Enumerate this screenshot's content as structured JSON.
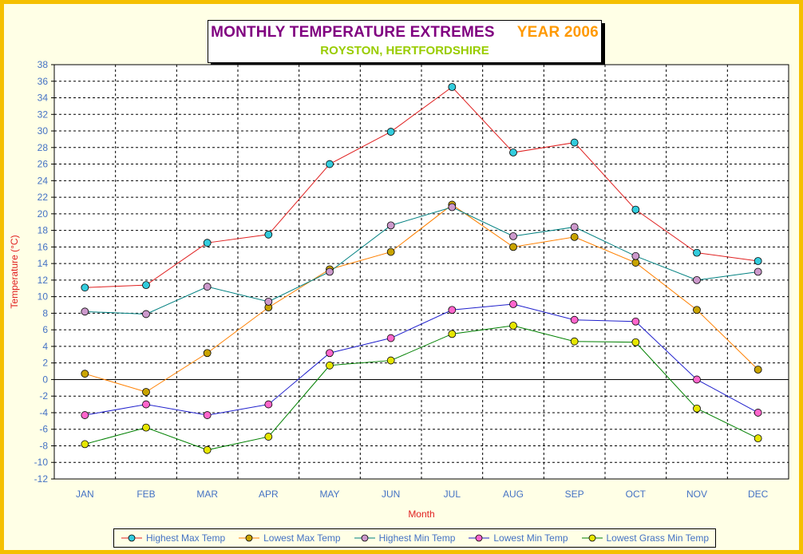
{
  "title": {
    "main": "MONTHLY TEMPERATURE EXTREMES",
    "year": "YEAR  2006",
    "subtitle": "ROYSTON, HERTFORDSHIRE"
  },
  "chart_data": {
    "type": "line",
    "ylabel": "Temperature (°C)",
    "xlabel": "Month",
    "categories": [
      "JAN",
      "FEB",
      "MAR",
      "APR",
      "MAY",
      "JUN",
      "JUL",
      "AUG",
      "SEP",
      "OCT",
      "NOV",
      "DEC"
    ],
    "ylim": [
      -12,
      38
    ],
    "ytick_step": 2,
    "grid": true,
    "legend_position": "bottom",
    "series": [
      {
        "name": "Highest Max Temp",
        "line_color": "#e02020",
        "marker_color": "#33ccdd",
        "values": [
          11.1,
          11.4,
          16.5,
          17.5,
          26.0,
          29.9,
          35.3,
          27.4,
          28.6,
          20.5,
          15.3,
          14.3
        ]
      },
      {
        "name": "Lowest Max Temp",
        "line_color": "#ff8000",
        "marker_color": "#c9a400",
        "values": [
          0.7,
          -1.5,
          3.2,
          8.7,
          13.3,
          15.4,
          21.1,
          16.0,
          17.2,
          14.1,
          8.4,
          1.2
        ]
      },
      {
        "name": "Highest Min Temp",
        "line_color": "#008080",
        "marker_color": "#cc99cc",
        "values": [
          8.2,
          7.9,
          11.2,
          9.4,
          13.0,
          18.6,
          20.8,
          17.3,
          18.4,
          14.9,
          12.0,
          13.0
        ]
      },
      {
        "name": "Lowest Min Temp",
        "line_color": "#2020cc",
        "marker_color": "#ff66cc",
        "values": [
          -4.3,
          -3.0,
          -4.3,
          -3.0,
          3.2,
          5.0,
          8.4,
          9.1,
          7.2,
          7.0,
          0.0,
          -4.0
        ]
      },
      {
        "name": "Lowest Grass Min Temp",
        "line_color": "#008000",
        "marker_color": "#e6e600",
        "values": [
          -7.8,
          -5.8,
          -8.5,
          -6.9,
          1.7,
          2.3,
          5.5,
          6.5,
          4.6,
          4.5,
          -3.5,
          -7.1
        ]
      }
    ]
  }
}
